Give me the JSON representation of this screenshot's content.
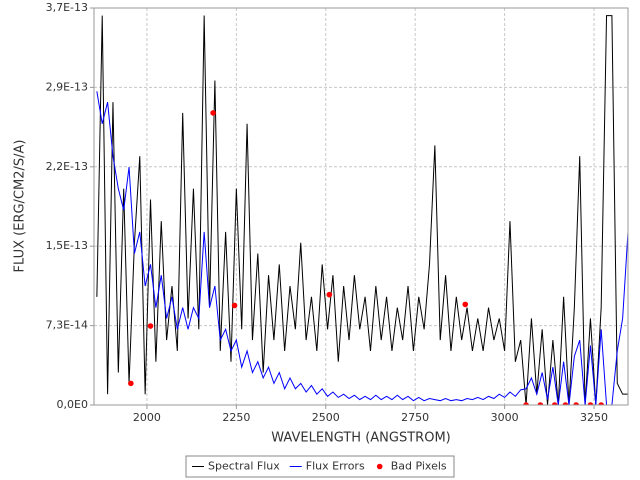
{
  "chart_data": {
    "type": "line",
    "x_label": "WAVELENGTH (ANGSTROM)",
    "y_label": "FLUX (ERG/CM2/S/A)",
    "x": [
      1860,
      1875,
      1890,
      1905,
      1920,
      1935,
      1950,
      1965,
      1980,
      1995,
      2010,
      2025,
      2040,
      2055,
      2070,
      2085,
      2100,
      2115,
      2130,
      2145,
      2160,
      2175,
      2190,
      2205,
      2220,
      2235,
      2250,
      2265,
      2280,
      2295,
      2310,
      2325,
      2340,
      2355,
      2370,
      2385,
      2400,
      2415,
      2430,
      2445,
      2460,
      2475,
      2490,
      2505,
      2520,
      2535,
      2550,
      2565,
      2580,
      2595,
      2610,
      2625,
      2640,
      2655,
      2670,
      2685,
      2700,
      2715,
      2730,
      2745,
      2760,
      2775,
      2790,
      2805,
      2820,
      2835,
      2850,
      2865,
      2880,
      2895,
      2910,
      2925,
      2940,
      2955,
      2970,
      2985,
      3000,
      3015,
      3030,
      3045,
      3060,
      3075,
      3090,
      3105,
      3120,
      3135,
      3150,
      3165,
      3180,
      3195,
      3210,
      3225,
      3240,
      3255,
      3270,
      3285,
      3300,
      3315,
      3330,
      3345
    ],
    "series": [
      {
        "name": "Spectral Flux",
        "color": "#000000",
        "values": [
          1e-13,
          3.6e-13,
          1e-14,
          2.8e-13,
          3e-14,
          2e-13,
          2e-14,
          1.5e-13,
          2.3e-13,
          1e-14,
          1.9e-13,
          4e-14,
          1.7e-13,
          6e-14,
          1.1e-13,
          5e-14,
          2.7e-13,
          8e-14,
          2e-13,
          7e-14,
          3.6e-13,
          9e-14,
          3e-13,
          5e-14,
          1.6e-13,
          4e-14,
          2e-13,
          7e-14,
          2.6e-13,
          6e-14,
          1.4e-13,
          3e-14,
          1.2e-13,
          6e-14,
          1.3e-13,
          5e-14,
          1.1e-13,
          7e-14,
          1.5e-13,
          6e-14,
          1e-13,
          5e-14,
          1.3e-13,
          7e-14,
          1.2e-13,
          4e-14,
          1.1e-13,
          6e-14,
          1.2e-13,
          7e-14,
          1e-13,
          5e-14,
          1.1e-13,
          6e-14,
          1e-13,
          5e-14,
          9e-14,
          6e-14,
          1.1e-13,
          5e-14,
          1e-13,
          7e-14,
          1.3e-13,
          2.4e-13,
          6e-14,
          1.2e-13,
          5e-14,
          1e-13,
          6e-14,
          9e-14,
          5e-14,
          8e-14,
          5e-14,
          9e-14,
          6e-14,
          8e-14,
          5e-14,
          1.7e-13,
          4e-14,
          6e-14,
          0,
          8e-14,
          1e-14,
          7e-14,
          0,
          6e-14,
          0,
          1e-13,
          0,
          9e-14,
          2.3e-13,
          0,
          8e-14,
          0,
          9e-14,
          3.6e-13,
          3.6e-13,
          2e-14,
          1e-14,
          1e-14
        ]
      },
      {
        "name": "Flux Errors",
        "color": "#0000ff",
        "values": [
          2.9e-13,
          2.6e-13,
          2.8e-13,
          2.3e-13,
          2e-13,
          1.8e-13,
          2.2e-13,
          1.4e-13,
          1.6e-13,
          1.1e-13,
          1.3e-13,
          9e-14,
          1.2e-13,
          8e-14,
          1e-13,
          7e-14,
          9e-14,
          7e-14,
          9e-14,
          8e-14,
          1.6e-13,
          9e-14,
          1.1e-13,
          6e-14,
          7e-14,
          5e-14,
          6e-14,
          3.5e-14,
          5e-14,
          3e-14,
          4e-14,
          2.5e-14,
          3.5e-14,
          2e-14,
          3e-14,
          1.5e-14,
          2.5e-14,
          1.5e-14,
          2e-14,
          1.2e-14,
          1.8e-14,
          1e-14,
          1.5e-14,
          8e-15,
          1.2e-14,
          7e-15,
          1e-14,
          6e-15,
          9e-15,
          5e-15,
          8e-15,
          5e-15,
          9e-15,
          5e-15,
          8e-15,
          5e-15,
          9e-15,
          5e-15,
          8e-15,
          4e-15,
          7e-15,
          4e-15,
          6e-15,
          5e-15,
          4e-15,
          6e-15,
          4e-15,
          5e-15,
          4e-15,
          6e-15,
          5e-15,
          7e-15,
          5e-15,
          8e-15,
          6e-15,
          1e-14,
          7e-15,
          1.2e-14,
          8e-15,
          1.4e-14,
          1.5e-14,
          2.5e-14,
          1e-14,
          3e-14,
          5e-15,
          3.5e-14,
          0,
          4e-14,
          0,
          4.5e-14,
          6e-14,
          0,
          5.5e-14,
          0,
          7e-14,
          0,
          0,
          5e-14,
          8e-14,
          1.6e-13
        ]
      },
      {
        "name": "Bad Pixels",
        "color": "#ff0000",
        "type": "scatter",
        "x": [
          1955,
          2010,
          2185,
          2245,
          2510,
          2890,
          3060,
          3100,
          3140,
          3170,
          3200,
          3240,
          3270
        ],
        "values": [
          2e-14,
          7.3e-14,
          2.7e-13,
          9.2e-14,
          1.02e-13,
          9.3e-14,
          0,
          0,
          0,
          0,
          0,
          0,
          0
        ]
      }
    ],
    "xlim": [
      1852,
      3345
    ],
    "xticks": [
      2000,
      2250,
      2500,
      2750,
      3000,
      3250
    ],
    "ylim": [
      0,
      3.67e-13
    ],
    "yticks": [
      {
        "value": 0,
        "label": "0,0E0"
      },
      {
        "value": 7.34e-14,
        "label": "7,3E-14"
      },
      {
        "value": 1.468e-13,
        "label": "1,5E-13"
      },
      {
        "value": 2.202e-13,
        "label": "2,2E-13"
      },
      {
        "value": 2.936e-13,
        "label": "2,9E-13"
      },
      {
        "value": 3.67e-13,
        "label": "3,7E-13"
      }
    ],
    "grid": true,
    "legend": "bottom"
  }
}
